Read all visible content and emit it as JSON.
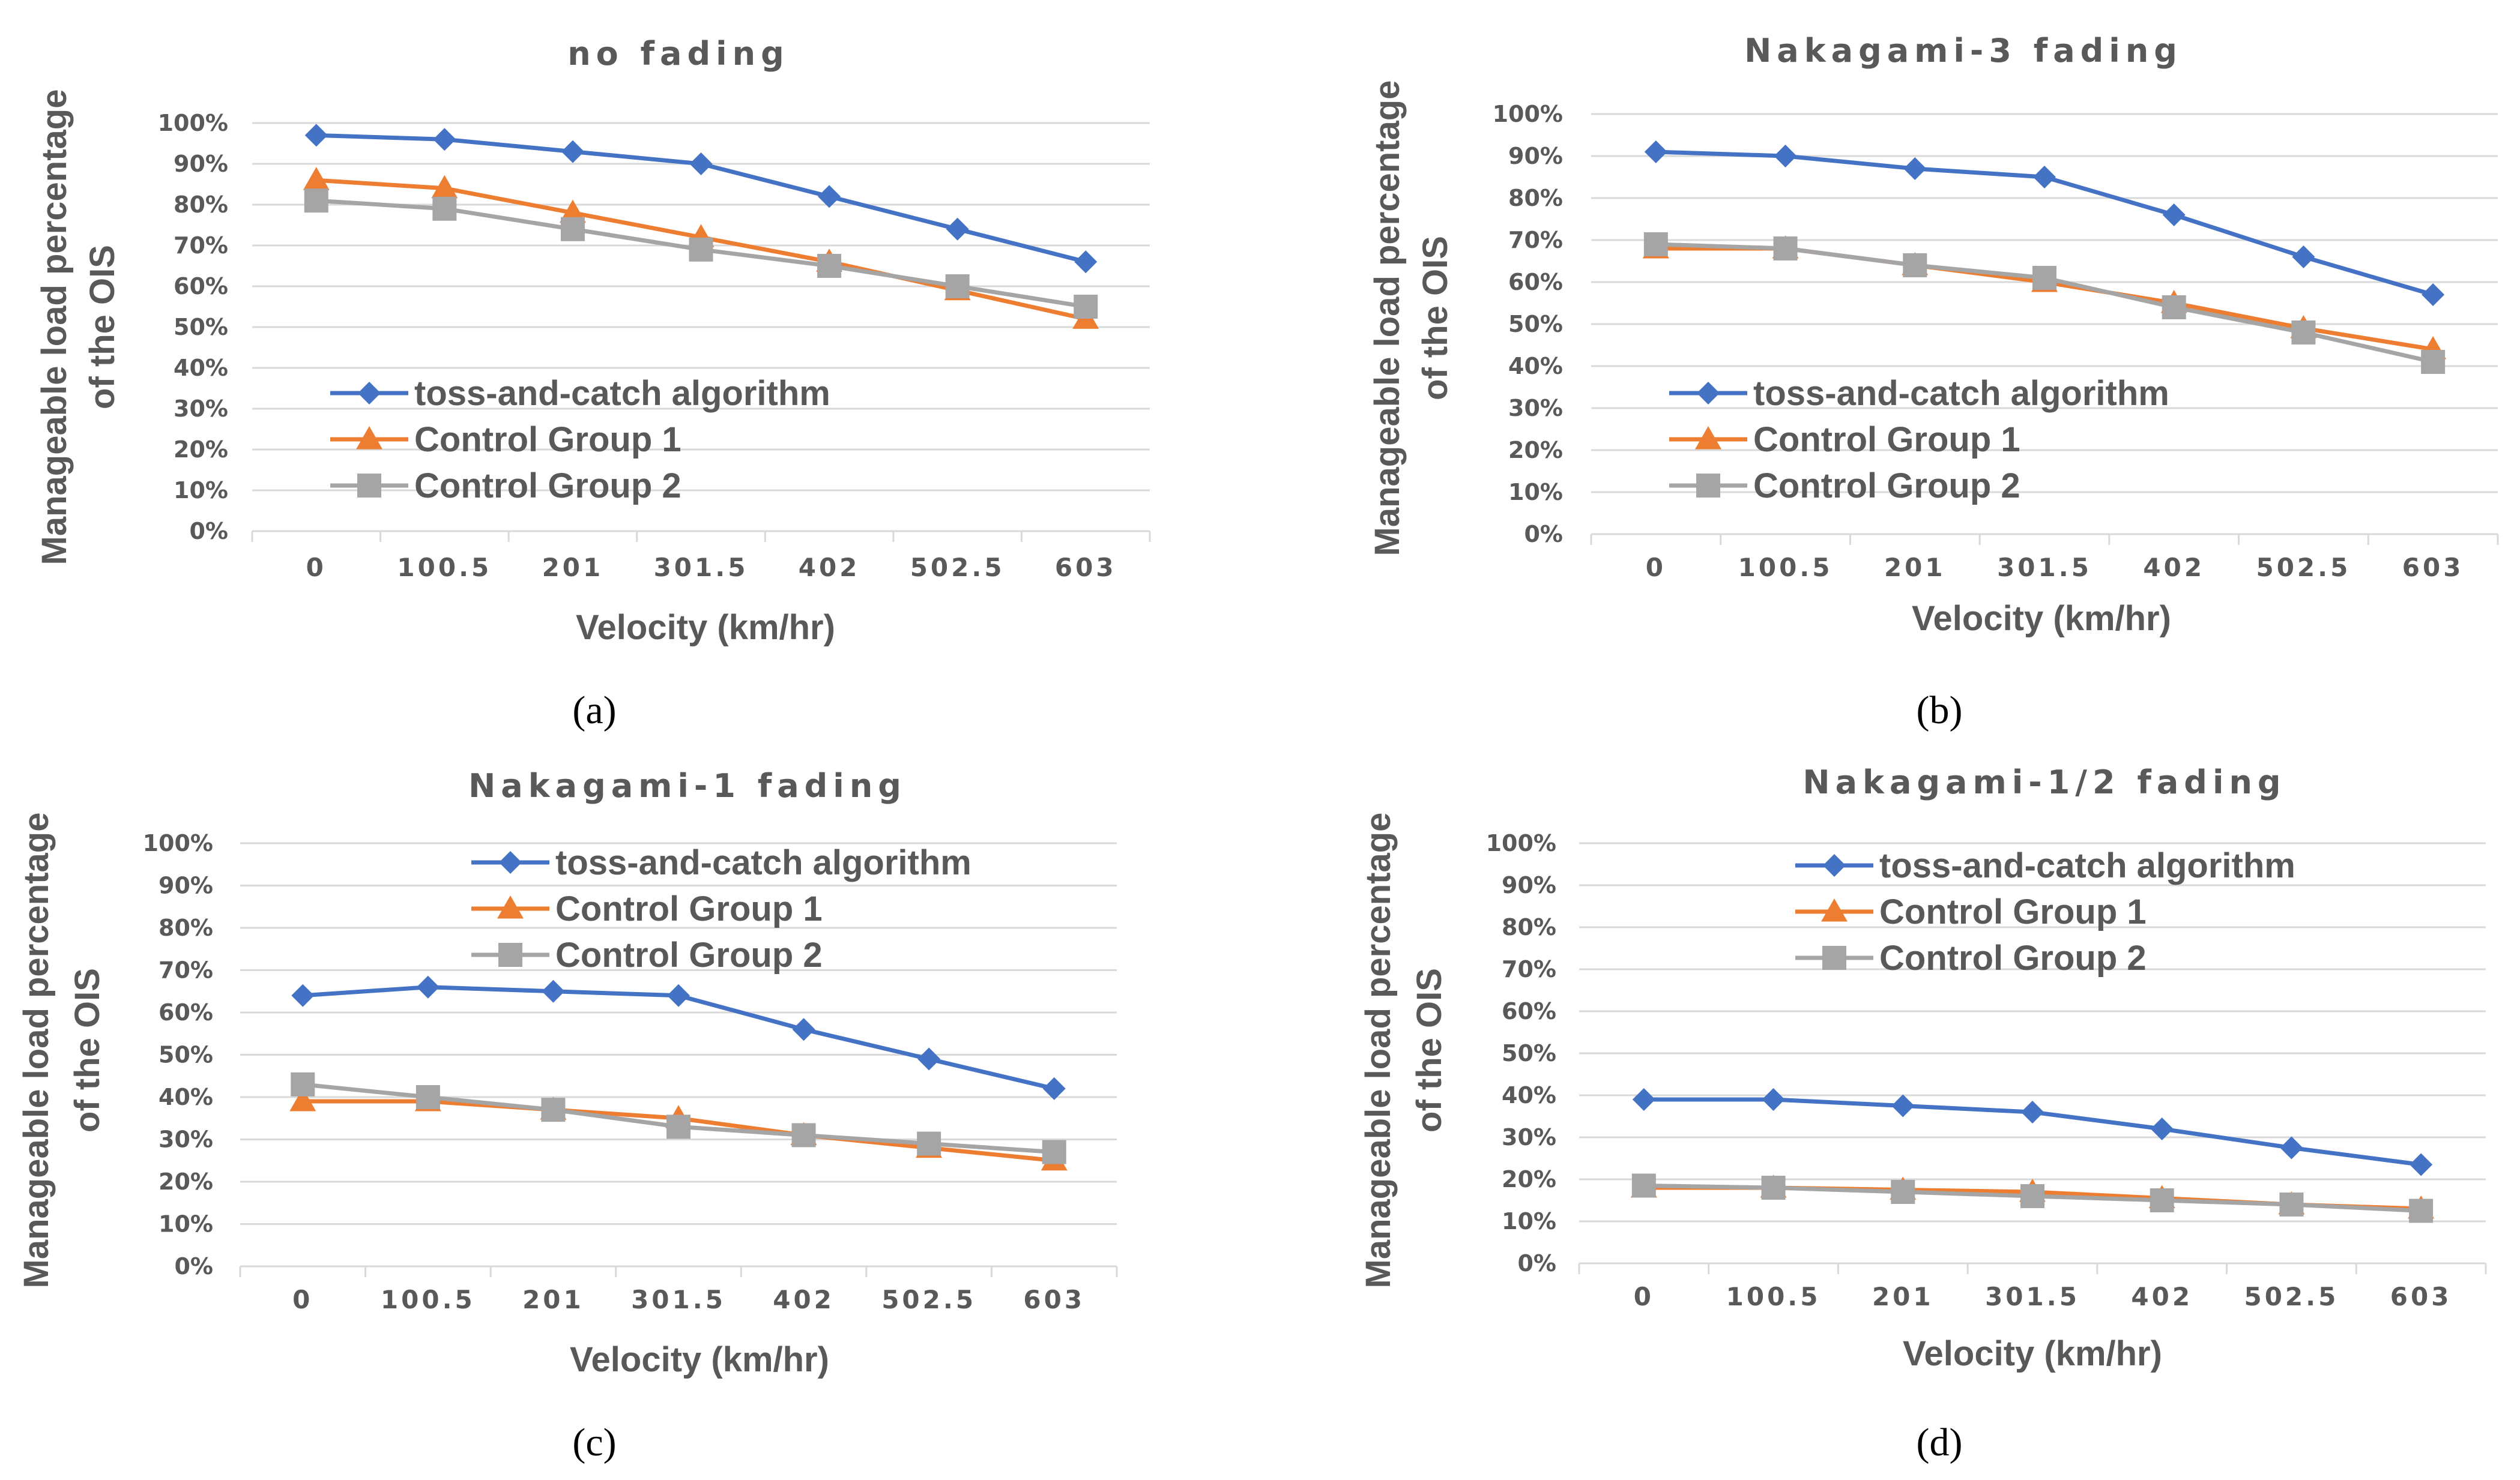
{
  "colors": {
    "series": [
      "#4472c4",
      "#ed7d31",
      "#a5a5a5"
    ],
    "text": "#595959",
    "grid": "#d9d9d9"
  },
  "chart_data": [
    {
      "type": "line",
      "title": "no fading",
      "panel_label": "(a)",
      "xlabel": "Velocity (km/hr)",
      "ylabel": [
        "Manageable load percentage",
        "of the OIS"
      ],
      "categories": [
        "0",
        "100.5",
        "201",
        "301.5",
        "402",
        "502.5",
        "603"
      ],
      "yticks": [
        "0%",
        "10%",
        "20%",
        "30%",
        "40%",
        "50%",
        "60%",
        "70%",
        "80%",
        "90%",
        "100%"
      ],
      "ylim": [
        0,
        100
      ],
      "legend_position": "bottom-left",
      "series": [
        {
          "name": "toss-and-catch algorithm",
          "marker": "diamond",
          "values": [
            97,
            96,
            93,
            90,
            82,
            74,
            66
          ]
        },
        {
          "name": "Control Group 1",
          "marker": "triangle",
          "values": [
            86,
            84,
            78,
            72,
            66,
            59,
            52
          ]
        },
        {
          "name": "Control Group 2",
          "marker": "square",
          "values": [
            81,
            79,
            74,
            69,
            65,
            60,
            55
          ]
        }
      ]
    },
    {
      "type": "line",
      "title": "Nakagami-3 fading",
      "panel_label": "(b)",
      "xlabel": "Velocity (km/hr)",
      "ylabel": [
        "Manageable load percentage",
        "of the OIS"
      ],
      "categories": [
        "0",
        "100.5",
        "201",
        "301.5",
        "402",
        "502.5",
        "603"
      ],
      "yticks": [
        "0%",
        "10%",
        "20%",
        "30%",
        "40%",
        "50%",
        "60%",
        "70%",
        "80%",
        "90%",
        "100%"
      ],
      "ylim": [
        0,
        100
      ],
      "legend_position": "bottom-left",
      "series": [
        {
          "name": "toss-and-catch algorithm",
          "marker": "diamond",
          "values": [
            91,
            90,
            87,
            85,
            76,
            66,
            57
          ]
        },
        {
          "name": "Control Group 1",
          "marker": "triangle",
          "values": [
            68,
            68,
            64,
            60,
            55,
            49,
            44
          ]
        },
        {
          "name": "Control Group 2",
          "marker": "square",
          "values": [
            69,
            68,
            64,
            61,
            54,
            48,
            41
          ]
        }
      ]
    },
    {
      "type": "line",
      "title": "Nakagami-1 fading",
      "panel_label": "(c)",
      "xlabel": "Velocity (km/hr)",
      "ylabel": [
        "Manageable load percentage",
        "of the OIS"
      ],
      "categories": [
        "0",
        "100.5",
        "201",
        "301.5",
        "402",
        "502.5",
        "603"
      ],
      "yticks": [
        "0%",
        "10%",
        "20%",
        "30%",
        "40%",
        "50%",
        "60%",
        "70%",
        "80%",
        "90%",
        "100%"
      ],
      "ylim": [
        0,
        100
      ],
      "legend_position": "top-center",
      "series": [
        {
          "name": "toss-and-catch algorithm",
          "marker": "diamond",
          "values": [
            64,
            66,
            65,
            64,
            56,
            49,
            42
          ]
        },
        {
          "name": "Control Group 1",
          "marker": "triangle",
          "values": [
            39,
            39,
            37,
            35,
            31,
            28,
            25
          ]
        },
        {
          "name": "Control Group 2",
          "marker": "square",
          "values": [
            43,
            40,
            37,
            33,
            31,
            29,
            27
          ]
        }
      ]
    },
    {
      "type": "line",
      "title": "Nakagami-1/2 fading",
      "panel_label": "(d)",
      "xlabel": "Velocity (km/hr)",
      "ylabel": [
        "Manageable load percentage",
        "of the OIS"
      ],
      "categories": [
        "0",
        "100.5",
        "201",
        "301.5",
        "402",
        "502.5",
        "603"
      ],
      "yticks": [
        "0%",
        "10%",
        "20%",
        "30%",
        "40%",
        "50%",
        "60%",
        "70%",
        "80%",
        "90%",
        "100%"
      ],
      "ylim": [
        0,
        100
      ],
      "legend_position": "top-center",
      "series": [
        {
          "name": "toss-and-catch algorithm",
          "marker": "diamond",
          "values": [
            39,
            39,
            37.5,
            36,
            32,
            27.5,
            23.5
          ]
        },
        {
          "name": "Control Group 1",
          "marker": "triangle",
          "values": [
            18,
            18,
            17.5,
            17,
            15.5,
            14,
            13
          ]
        },
        {
          "name": "Control Group 2",
          "marker": "square",
          "values": [
            18.5,
            18,
            17,
            16,
            15,
            14,
            12.5
          ]
        }
      ]
    }
  ]
}
